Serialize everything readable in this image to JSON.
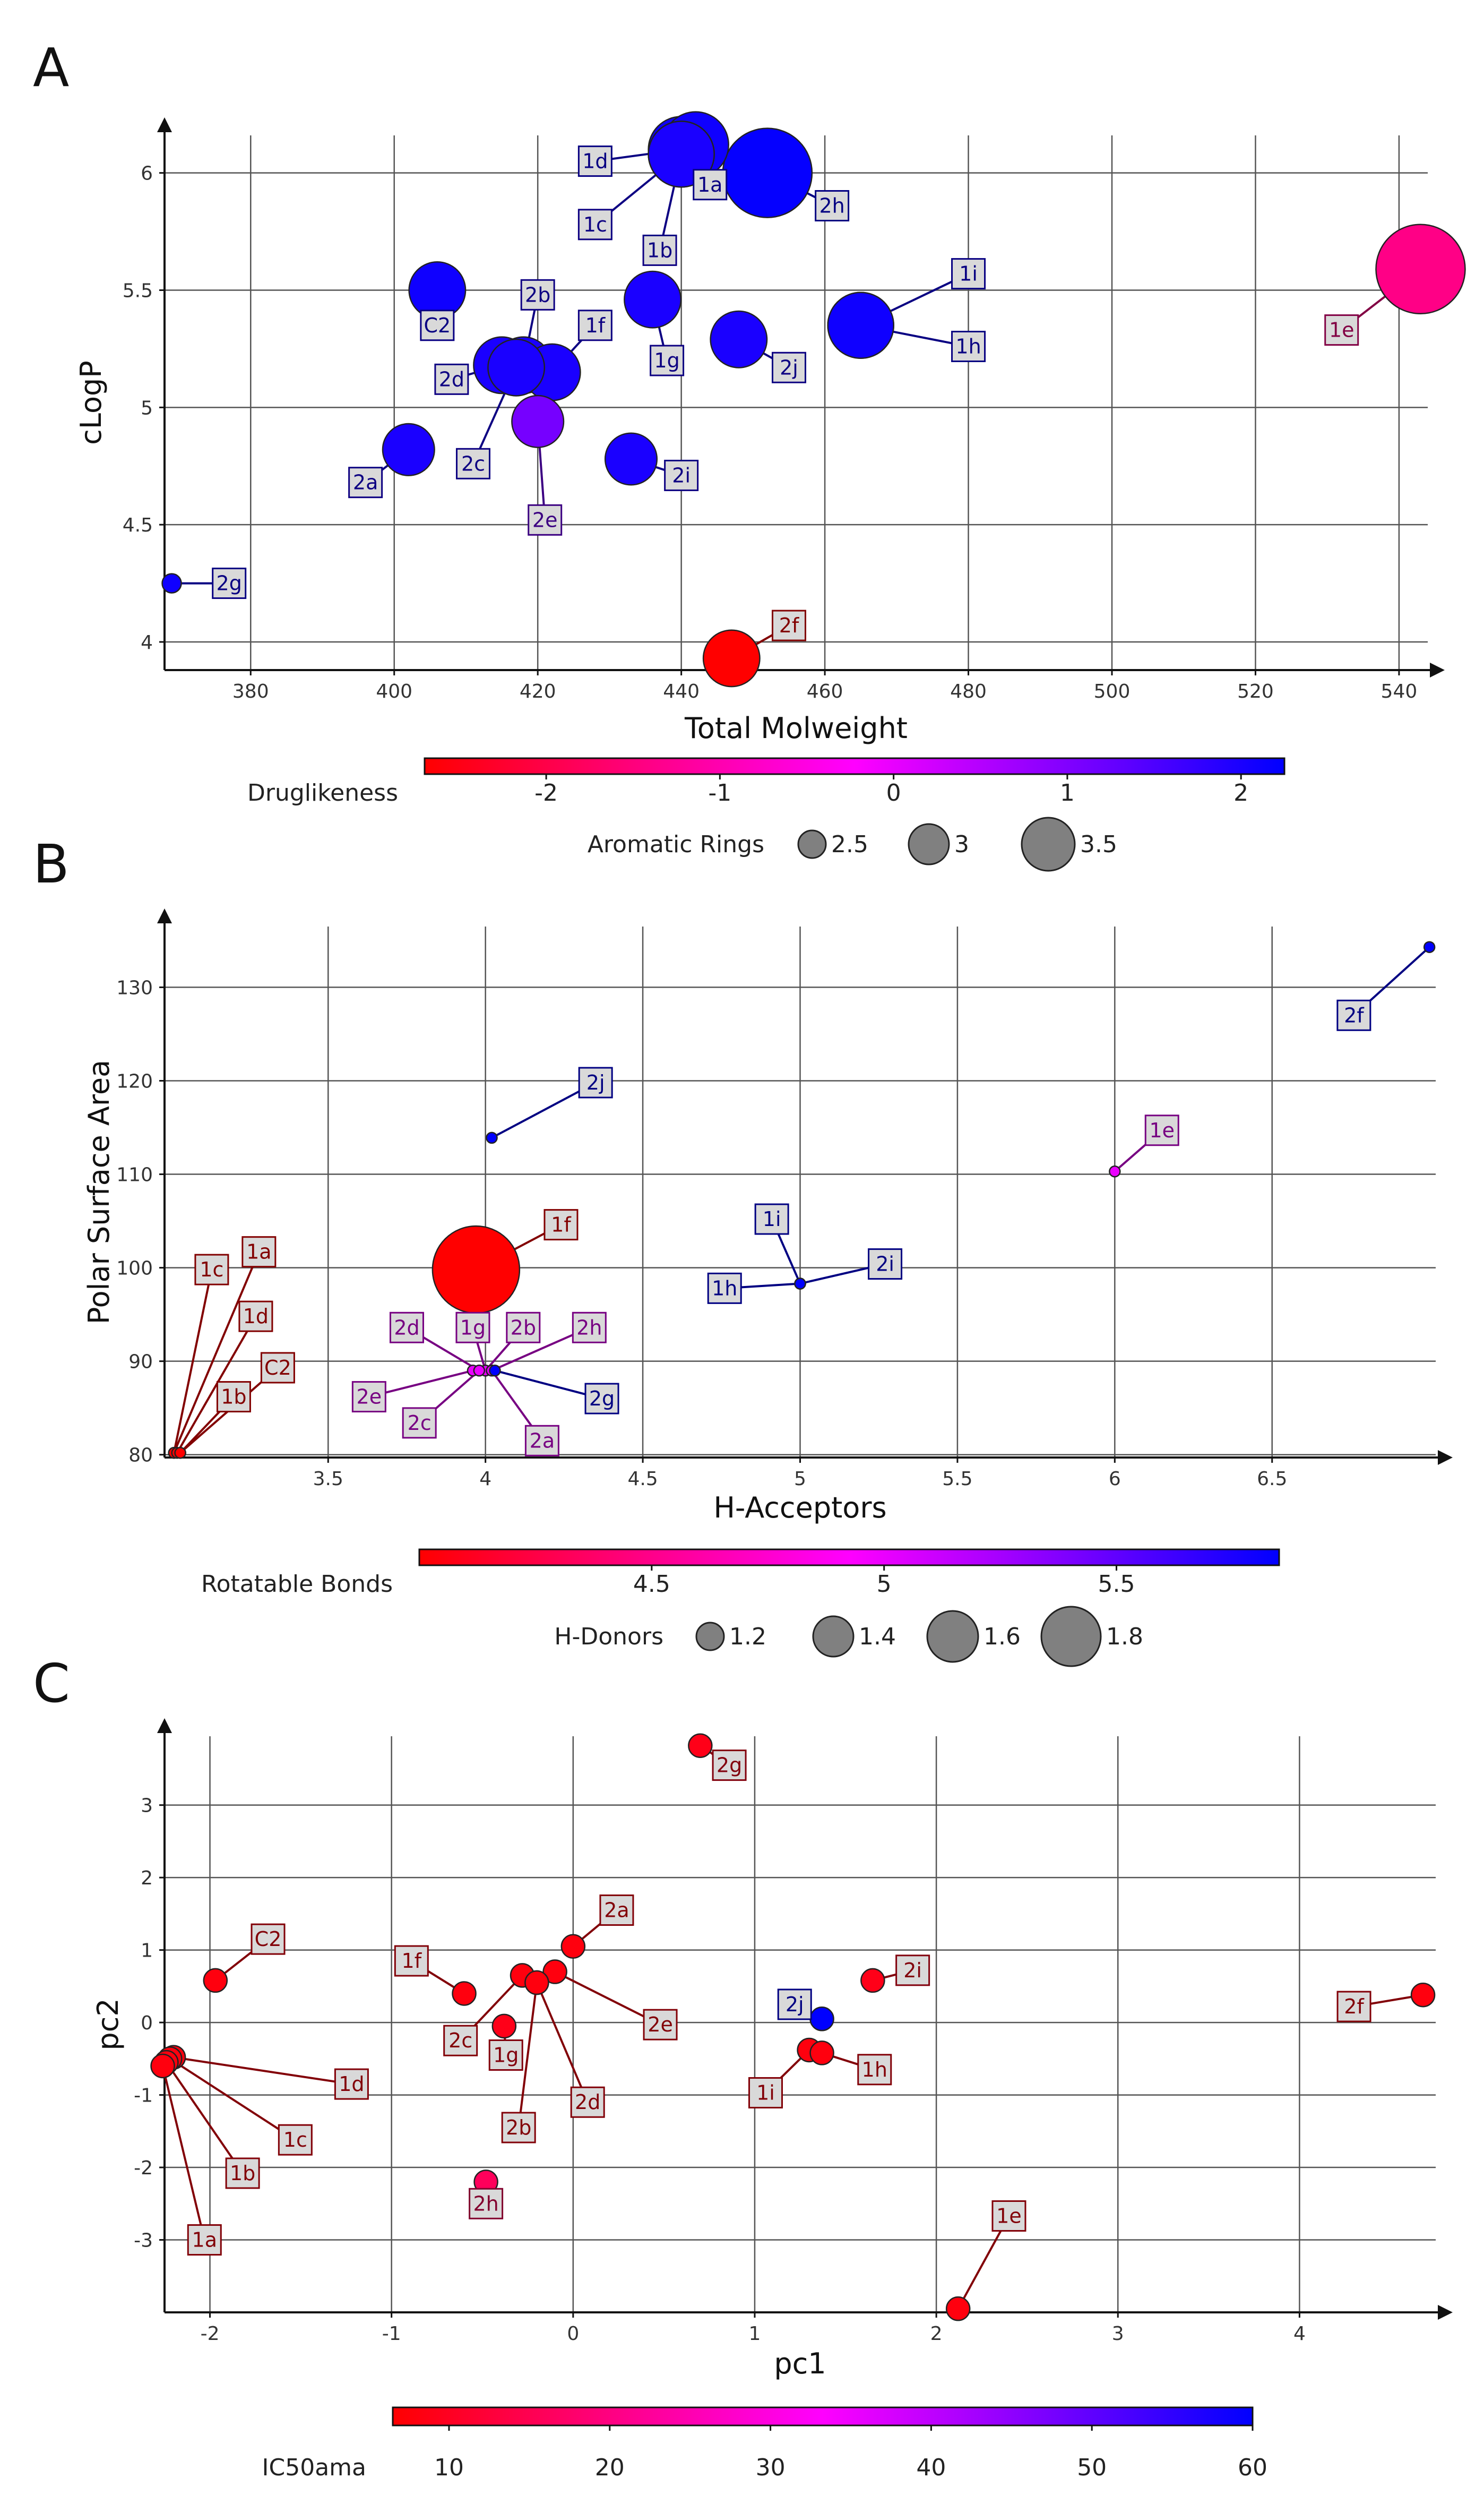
{
  "chart_data": [
    {
      "panel": "A",
      "type": "scatter",
      "xlabel": "Total Molweight",
      "ylabel": "cLogP",
      "xlim": [
        368,
        544
      ],
      "ylim": [
        3.88,
        6.16
      ],
      "xticks": [
        380,
        400,
        420,
        440,
        460,
        480,
        500,
        520,
        540
      ],
      "yticks": [
        4,
        4.5,
        5,
        5.5,
        6
      ],
      "color_legend": {
        "title": "Druglikeness",
        "range": [
          -2.7,
          2.25
        ],
        "ticks": [
          -2,
          -1,
          0,
          1,
          2
        ]
      },
      "size_legend": {
        "title": "Aromatic Rings",
        "entries": [
          2.5,
          3,
          3.5
        ]
      },
      "points": [
        {
          "label": "1d",
          "x": 440,
          "y": 6.1,
          "size": 3.0,
          "color_value": 2.1,
          "lx": 428,
          "ly": 6.05
        },
        {
          "label": "1a",
          "x": 442,
          "y": 6.12,
          "size": 3.0,
          "color_value": 2.1,
          "lx": 444,
          "ly": 5.95
        },
        {
          "label": "1c",
          "x": 440,
          "y": 6.08,
          "size": 3.0,
          "color_value": 2.0,
          "lx": 428,
          "ly": 5.78
        },
        {
          "label": "1b",
          "x": 440,
          "y": 6.08,
          "size": 3.0,
          "color_value": 2.0,
          "lx": 437,
          "ly": 5.67
        },
        {
          "label": "2h",
          "x": 452,
          "y": 6.0,
          "size": 3.5,
          "color_value": 2.2,
          "lx": 461,
          "ly": 5.86
        },
        {
          "label": "1i",
          "x": 465,
          "y": 5.35,
          "size": 3.0,
          "color_value": 2.1,
          "lx": 480,
          "ly": 5.57
        },
        {
          "label": "1h",
          "x": 465,
          "y": 5.35,
          "size": 3.0,
          "color_value": 2.1,
          "lx": 480,
          "ly": 5.26
        },
        {
          "label": "1e",
          "x": 543,
          "y": 5.59,
          "size": 3.5,
          "color_value": -1.4,
          "lx": 532,
          "ly": 5.33
        },
        {
          "label": "C2",
          "x": 406,
          "y": 5.5,
          "size": 2.8,
          "color_value": 2.1,
          "lx": 406,
          "ly": 5.35
        },
        {
          "label": "2b",
          "x": 418,
          "y": 5.18,
          "size": 2.8,
          "color_value": 2.0,
          "lx": 420,
          "ly": 5.48
        },
        {
          "label": "1f",
          "x": 422,
          "y": 5.15,
          "size": 2.8,
          "color_value": 2.0,
          "lx": 428,
          "ly": 5.35
        },
        {
          "label": "1g",
          "x": 436,
          "y": 5.46,
          "size": 2.8,
          "color_value": 2.0,
          "lx": 438,
          "ly": 5.2
        },
        {
          "label": "2j",
          "x": 448,
          "y": 5.29,
          "size": 2.8,
          "color_value": 2.0,
          "lx": 455,
          "ly": 5.17
        },
        {
          "label": "2d",
          "x": 415,
          "y": 5.18,
          "size": 2.8,
          "color_value": 2.0,
          "lx": 408,
          "ly": 5.12
        },
        {
          "label": "2c",
          "x": 417,
          "y": 5.17,
          "size": 2.8,
          "color_value": 2.0,
          "lx": 411,
          "ly": 4.76
        },
        {
          "label": "2e",
          "x": 420,
          "y": 4.94,
          "size": 2.7,
          "color_value": 1.1,
          "lx": 421,
          "ly": 4.52
        },
        {
          "label": "2a",
          "x": 402,
          "y": 4.82,
          "size": 2.7,
          "color_value": 2.0,
          "lx": 396,
          "ly": 4.68
        },
        {
          "label": "2i",
          "x": 433,
          "y": 4.78,
          "size": 2.7,
          "color_value": 2.0,
          "lx": 440,
          "ly": 4.71
        },
        {
          "label": "2g",
          "x": 369,
          "y": 4.25,
          "size": 2.0,
          "color_value": 2.1,
          "lx": 377,
          "ly": 4.25
        },
        {
          "label": "2f",
          "x": 447,
          "y": 3.93,
          "size": 2.8,
          "color_value": -2.7,
          "lx": 455,
          "ly": 4.07
        }
      ]
    },
    {
      "panel": "B",
      "type": "scatter",
      "xlabel": "H-Acceptors",
      "ylabel": "Polar Surface Area",
      "xlim": [
        2.98,
        7.02
      ],
      "ylim": [
        79.7,
        136.5
      ],
      "xticks": [
        3.5,
        4,
        4.5,
        5,
        5.5,
        6,
        6.5
      ],
      "yticks": [
        80,
        90,
        100,
        110,
        120,
        130
      ],
      "color_legend": {
        "title": "Rotatable Bonds",
        "range": [
          4.0,
          5.85
        ],
        "ticks": [
          4.5,
          5,
          5.5
        ]
      },
      "size_legend": {
        "title": "H-Donors",
        "entries": [
          1.2,
          1.4,
          1.6,
          1.8
        ]
      },
      "points": [
        {
          "label": "2f",
          "x": 7.0,
          "y": 134.3,
          "size": 1.0,
          "color_value": 5.85,
          "lx": 6.76,
          "ly": 127.0
        },
        {
          "label": "2j",
          "x": 4.02,
          "y": 113.9,
          "size": 1.0,
          "color_value": 5.85,
          "lx": 4.35,
          "ly": 119.8
        },
        {
          "label": "1e",
          "x": 6.0,
          "y": 110.3,
          "size": 1.0,
          "color_value": 5.0,
          "lx": 6.15,
          "ly": 114.7
        },
        {
          "label": "1f",
          "x": 3.97,
          "y": 99.8,
          "size": 1.9,
          "color_value": 4.0,
          "lx": 4.24,
          "ly": 104.6
        },
        {
          "label": "1i",
          "x": 5.0,
          "y": 98.3,
          "size": 1.0,
          "color_value": 5.85,
          "lx": 4.91,
          "ly": 105.2
        },
        {
          "label": "2i",
          "x": 5.0,
          "y": 98.3,
          "size": 1.0,
          "color_value": 5.85,
          "lx": 5.27,
          "ly": 100.4
        },
        {
          "label": "1h",
          "x": 5.0,
          "y": 98.3,
          "size": 1.0,
          "color_value": 5.85,
          "lx": 4.76,
          "ly": 97.8
        },
        {
          "label": "1a",
          "x": 3.01,
          "y": 80.2,
          "size": 1.0,
          "color_value": 4.0,
          "lx": 3.28,
          "ly": 101.7
        },
        {
          "label": "1c",
          "x": 3.01,
          "y": 80.2,
          "size": 1.0,
          "color_value": 4.0,
          "lx": 3.13,
          "ly": 99.8
        },
        {
          "label": "1d",
          "x": 3.02,
          "y": 80.2,
          "size": 1.0,
          "color_value": 4.0,
          "lx": 3.27,
          "ly": 94.8
        },
        {
          "label": "C2",
          "x": 3.03,
          "y": 80.2,
          "size": 1.0,
          "color_value": 4.0,
          "lx": 3.34,
          "ly": 89.3
        },
        {
          "label": "1b",
          "x": 3.03,
          "y": 80.2,
          "size": 1.0,
          "color_value": 4.0,
          "lx": 3.2,
          "ly": 86.2
        },
        {
          "label": "2d",
          "x": 3.98,
          "y": 89.0,
          "size": 1.0,
          "color_value": 5.0,
          "lx": 3.75,
          "ly": 93.6
        },
        {
          "label": "1g",
          "x": 4.0,
          "y": 89.0,
          "size": 1.0,
          "color_value": 5.0,
          "lx": 3.96,
          "ly": 93.6
        },
        {
          "label": "2b",
          "x": 4.0,
          "y": 89.0,
          "size": 1.0,
          "color_value": 5.0,
          "lx": 4.12,
          "ly": 93.6
        },
        {
          "label": "2h",
          "x": 4.02,
          "y": 89.0,
          "size": 1.0,
          "color_value": 5.0,
          "lx": 4.33,
          "ly": 93.6
        },
        {
          "label": "2e",
          "x": 3.96,
          "y": 89.0,
          "size": 1.0,
          "color_value": 5.0,
          "lx": 3.63,
          "ly": 86.2
        },
        {
          "label": "2c",
          "x": 3.98,
          "y": 89.0,
          "size": 1.0,
          "color_value": 5.0,
          "lx": 3.79,
          "ly": 83.4
        },
        {
          "label": "2a",
          "x": 4.02,
          "y": 89.0,
          "size": 1.0,
          "color_value": 5.0,
          "lx": 4.18,
          "ly": 81.5
        },
        {
          "label": "2g",
          "x": 4.03,
          "y": 89.0,
          "size": 1.0,
          "color_value": 5.85,
          "lx": 4.37,
          "ly": 86.0
        }
      ]
    },
    {
      "panel": "C",
      "type": "scatter",
      "xlabel": "pc1",
      "ylabel": "pc2",
      "xlim": [
        -2.25,
        4.75
      ],
      "ylim": [
        -4.0,
        3.95
      ],
      "xticks": [
        -2,
        -1,
        0,
        1,
        2,
        3,
        4
      ],
      "yticks": [
        -3,
        -2,
        -1,
        0,
        1,
        2,
        3
      ],
      "color_legend": {
        "title": "IC50ama",
        "range": [
          6.5,
          60.0
        ],
        "ticks": [
          10,
          20,
          30,
          40,
          50,
          60
        ]
      },
      "points": [
        {
          "label": "2g",
          "x": 0.7,
          "y": 3.82,
          "color_value": 9.0,
          "lx": 0.86,
          "ly": 3.55
        },
        {
          "label": "2a",
          "x": 0.0,
          "y": 1.05,
          "color_value": 8.0,
          "lx": 0.24,
          "ly": 1.55
        },
        {
          "label": "C2",
          "x": -1.97,
          "y": 0.58,
          "color_value": 8.0,
          "lx": -1.68,
          "ly": 1.15
        },
        {
          "label": "1f",
          "x": -0.6,
          "y": 0.4,
          "color_value": 8.0,
          "lx": -0.89,
          "ly": 0.85
        },
        {
          "label": "2i",
          "x": 1.65,
          "y": 0.58,
          "color_value": 9.0,
          "lx": 1.87,
          "ly": 0.72
        },
        {
          "label": "2j",
          "x": 1.37,
          "y": 0.05,
          "color_value": 60.0,
          "lx": 1.22,
          "ly": 0.25
        },
        {
          "label": "2f",
          "x": 4.68,
          "y": 0.38,
          "color_value": 8.0,
          "lx": 4.3,
          "ly": 0.22
        },
        {
          "label": "2e",
          "x": -0.1,
          "y": 0.7,
          "color_value": 8.0,
          "lx": 0.48,
          "ly": -0.03
        },
        {
          "label": "2c",
          "x": -0.28,
          "y": 0.65,
          "color_value": 8.0,
          "lx": -0.62,
          "ly": -0.25
        },
        {
          "label": "1g",
          "x": -0.38,
          "y": -0.05,
          "color_value": 9.0,
          "lx": -0.37,
          "ly": -0.45
        },
        {
          "label": "2b",
          "x": -0.2,
          "y": 0.55,
          "color_value": 8.0,
          "lx": -0.3,
          "ly": -1.45
        },
        {
          "label": "2d",
          "x": -0.2,
          "y": 0.55,
          "color_value": 8.0,
          "lx": 0.08,
          "ly": -1.1
        },
        {
          "label": "1d",
          "x": -2.2,
          "y": -0.48,
          "color_value": 8.0,
          "lx": -1.22,
          "ly": -0.85
        },
        {
          "label": "1c",
          "x": -2.22,
          "y": -0.5,
          "color_value": 8.0,
          "lx": -1.53,
          "ly": -1.62
        },
        {
          "label": "1b",
          "x": -2.24,
          "y": -0.55,
          "color_value": 8.0,
          "lx": -1.82,
          "ly": -2.08
        },
        {
          "label": "1a",
          "x": -2.26,
          "y": -0.6,
          "color_value": 8.0,
          "lx": -2.03,
          "ly": -3.0
        },
        {
          "label": "1i",
          "x": 1.3,
          "y": -0.38,
          "color_value": 8.0,
          "lx": 1.06,
          "ly": -0.97
        },
        {
          "label": "1h",
          "x": 1.37,
          "y": -0.42,
          "color_value": 8.0,
          "lx": 1.66,
          "ly": -0.65
        },
        {
          "label": "2h",
          "x": -0.48,
          "y": -2.2,
          "color_value": 16.0,
          "lx": -0.48,
          "ly": -2.5
        },
        {
          "label": "1e",
          "x": 2.12,
          "y": -3.95,
          "color_value": 8.0,
          "lx": 2.4,
          "ly": -2.67
        }
      ]
    }
  ]
}
